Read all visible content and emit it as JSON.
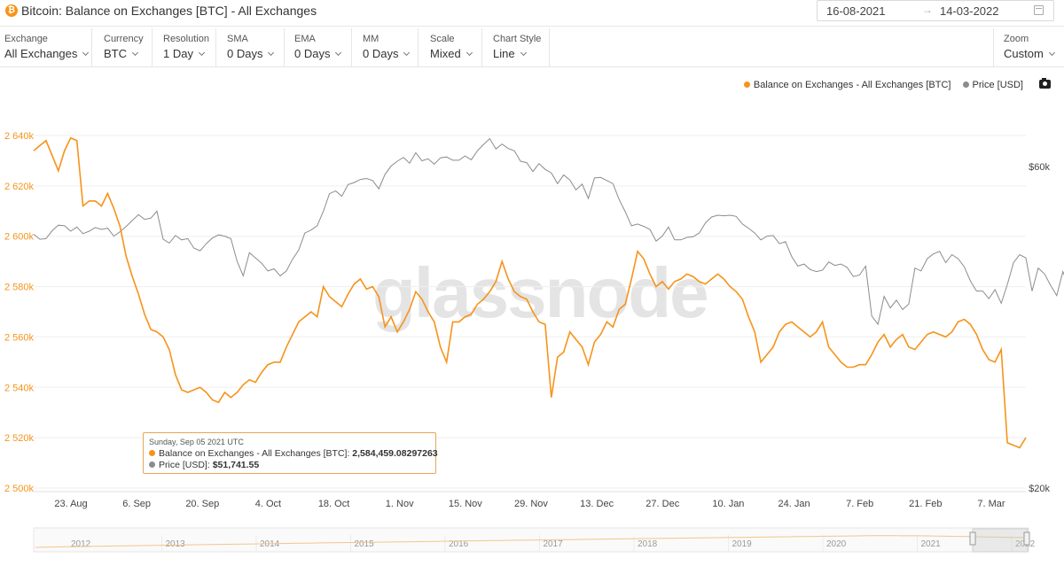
{
  "header": {
    "icon_glyph": "₿",
    "title": "Bitcoin: Balance on Exchanges [BTC] - All Exchanges",
    "date_from": "16-08-2021",
    "date_to": "14-03-2022",
    "arrow_glyph": "→"
  },
  "controls": [
    {
      "label": "Exchange",
      "value": "All Exchanges"
    },
    {
      "label": "Currency",
      "value": "BTC"
    },
    {
      "label": "Resolution",
      "value": "1 Day"
    },
    {
      "label": "SMA",
      "value": "0 Days"
    },
    {
      "label": "EMA",
      "value": "0 Days"
    },
    {
      "label": "MM",
      "value": "0 Days"
    },
    {
      "label": "Scale",
      "value": "Mixed"
    },
    {
      "label": "Chart Style",
      "value": "Line"
    }
  ],
  "zoom": {
    "label": "Zoom",
    "value": "Custom"
  },
  "legend": {
    "balance": "Balance on Exchanges - All Exchanges [BTC]",
    "price": "Price [USD]"
  },
  "watermark": "glassnode",
  "colors": {
    "balance": "#f7931a",
    "price": "#8c8c8c",
    "accent": "#f7931a"
  },
  "tooltip": {
    "date": "Sunday, Sep 05 2021 UTC",
    "balance_label": "Balance on Exchanges - All Exchanges [BTC]:",
    "balance_value": "2,584,459.08297263",
    "price_label": "Price [USD]:",
    "price_value": "$51,741.55"
  },
  "chart_data": {
    "type": "line",
    "x_start": "2021-08-16",
    "x_end": "2022-03-14",
    "xtick_labels": [
      "23. Aug",
      "6. Sep",
      "20. Sep",
      "4. Oct",
      "18. Oct",
      "1. Nov",
      "15. Nov",
      "29. Nov",
      "13. Dec",
      "27. Dec",
      "10. Jan",
      "24. Jan",
      "7. Feb",
      "21. Feb",
      "7. Mar"
    ],
    "left_axis": {
      "ticks": [
        "2 640k",
        "2 620k",
        "2 600k",
        "2 580k",
        "2 560k",
        "2 540k",
        "2 520k",
        "2 500k"
      ],
      "ylim": [
        2500000,
        2640000
      ]
    },
    "right_axis": {
      "ticks": [
        "$60k",
        "$20k"
      ]
    },
    "series": [
      {
        "name": "Balance on Exchanges - All Exchanges [BTC]",
        "axis": "left",
        "values": [
          2634000,
          2636000,
          2638000,
          2632000,
          2626000,
          2634000,
          2639000,
          2638000,
          2612000,
          2614000,
          2614000,
          2612000,
          2617000,
          2611000,
          2604000,
          2592000,
          2584000,
          2577000,
          2569000,
          2563000,
          2562000,
          2560000,
          2555000,
          2545000,
          2539000,
          2538000,
          2539000,
          2540000,
          2538000,
          2535000,
          2534000,
          2538000,
          2536000,
          2538000,
          2541000,
          2543000,
          2542000,
          2546000,
          2549000,
          2550000,
          2550000,
          2556000,
          2561000,
          2566000,
          2568000,
          2570000,
          2568000,
          2580000,
          2576000,
          2574000,
          2572000,
          2577000,
          2581000,
          2583000,
          2579000,
          2580000,
          2576000,
          2564000,
          2568000,
          2562000,
          2566000,
          2571000,
          2578000,
          2575000,
          2570000,
          2566000,
          2556000,
          2550000,
          2566000,
          2566000,
          2568000,
          2569000,
          2573000,
          2575000,
          2578000,
          2582000,
          2590000,
          2583000,
          2578000,
          2576000,
          2575000,
          2570000,
          2566000,
          2565000,
          2536000,
          2552000,
          2554000,
          2562000,
          2559000,
          2556000,
          2549000,
          2558000,
          2561000,
          2566000,
          2564000,
          2571000,
          2573000,
          2583000,
          2594000,
          2591000,
          2585000,
          2580000,
          2582000,
          2579000,
          2582000,
          2583000,
          2585000,
          2584000,
          2582000,
          2581000,
          2583000,
          2585000,
          2583000,
          2580000,
          2578000,
          2575000,
          2568000,
          2562000,
          2550000,
          2553000,
          2556000,
          2562000,
          2565000,
          2566000,
          2564000,
          2562000,
          2560000,
          2562000,
          2566000,
          2556000,
          2553000,
          2550000,
          2548000,
          2548000,
          2549000,
          2549000,
          2553000,
          2558000,
          2561000,
          2556000,
          2559000,
          2561000,
          2556000,
          2555000,
          2558000,
          2561000,
          2562000,
          2561000,
          2560000,
          2562000,
          2566000,
          2567000,
          2565000,
          2561000,
          2555000,
          2551000,
          2550000,
          2555000,
          2518000,
          2517000,
          2516000,
          2520000
        ]
      },
      {
        "name": "Price [USD]",
        "axis": "right",
        "values": [
          47600,
          46800,
          46900,
          48200,
          49100,
          49000,
          48100,
          48800,
          47700,
          48100,
          48700,
          48400,
          48600,
          47300,
          48000,
          48900,
          49900,
          50900,
          50100,
          50300,
          51500,
          46800,
          46200,
          47400,
          46700,
          46900,
          45400,
          45000,
          46100,
          47000,
          47500,
          47300,
          46900,
          43400,
          41300,
          44700,
          43900,
          43100,
          42000,
          42300,
          41300,
          42000,
          43700,
          45100,
          47800,
          48300,
          49000,
          51500,
          54700,
          55200,
          54200,
          56400,
          56800,
          57400,
          57600,
          57200,
          55600,
          58400,
          60100,
          61100,
          61900,
          60700,
          62900,
          61200,
          61600,
          60500,
          61800,
          62000,
          61300,
          61300,
          62200,
          61400,
          63300,
          64700,
          66000,
          63700,
          64800,
          63800,
          63300,
          61100,
          60800,
          59000,
          60600,
          59400,
          58700,
          56600,
          58300,
          57300,
          55400,
          56500,
          53800,
          57700,
          57800,
          57200,
          56600,
          53600,
          51400,
          49000,
          49300,
          48900,
          48400,
          46500,
          47300,
          48800,
          46700,
          46700,
          47100,
          47200,
          47800,
          49500,
          50500,
          50800,
          50700,
          50800,
          50600,
          49300,
          48600,
          47800,
          46700,
          47300,
          47400,
          46100,
          46400,
          44100,
          42700,
          43000,
          42200,
          41900,
          42100,
          43300,
          42800,
          43000,
          42500,
          41200,
          41400,
          42700,
          36000,
          35000,
          38500,
          37000,
          38000,
          36800,
          37500,
          42400,
          42000,
          43800,
          44500,
          44900,
          43200,
          44400,
          43800,
          42600,
          40600,
          39200,
          39200,
          38200,
          39400,
          37600,
          40100,
          43200,
          44400,
          43900,
          39200,
          42400,
          41600,
          40000,
          38600,
          41900,
          39700,
          38700
        ]
      }
    ]
  },
  "navigator": {
    "years": [
      "2012",
      "2013",
      "2014",
      "2015",
      "2016",
      "2017",
      "2018",
      "2019",
      "2020",
      "2021",
      "2022"
    ]
  }
}
